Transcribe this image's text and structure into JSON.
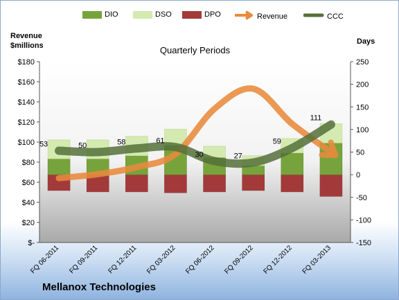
{
  "chart_data": {
    "type": "bar",
    "title": "Quarterly Periods",
    "company": "Mellanox Technologies",
    "y_left_label": [
      "Revenue",
      "$millions"
    ],
    "y_right_label": "Days",
    "categories": [
      "FQ 06-2011",
      "FQ 09-2011",
      "FQ 12-2011",
      "FQ 03-2012",
      "FQ 06-2012",
      "FQ 09-2012",
      "FQ 12-2012",
      "FQ 03-2013"
    ],
    "y_left_ticks": [
      "$-",
      "$20",
      "$40",
      "$60",
      "$80",
      "$100",
      "$120",
      "$140",
      "$160",
      "$180"
    ],
    "y_left_range": [
      0,
      180
    ],
    "y_right_range": [
      -150,
      250
    ],
    "y_right_ticks": [
      "-150",
      "-100",
      "-50",
      "0",
      "50",
      "100",
      "150",
      "200",
      "250"
    ],
    "series": [
      {
        "name": "DIO",
        "axis": "days",
        "color": "#77a33c",
        "values": [
          35,
          35,
          42,
          65,
          38,
          20,
          48,
          70
        ]
      },
      {
        "name": "DSO",
        "axis": "days",
        "color": "#d4eab0",
        "values": [
          42,
          42,
          43,
          36,
          25,
          22,
          32,
          43
        ]
      },
      {
        "name": "DPO",
        "axis": "days",
        "color": "#a33a3a",
        "values": [
          -35,
          -38,
          -38,
          -40,
          -38,
          -35,
          -38,
          -48
        ]
      },
      {
        "name": "Revenue",
        "axis": "revenue",
        "color": "#e88a3c",
        "values": [
          64,
          68,
          75,
          88,
          133,
          153,
          118,
          90
        ]
      },
      {
        "name": "CCC",
        "axis": "days",
        "color": "#55703a",
        "values": [
          53,
          50,
          58,
          61,
          30,
          27,
          59,
          111
        ],
        "labels": [
          "53",
          "50",
          "58",
          "61",
          "30",
          "27",
          "59",
          "111"
        ]
      }
    ],
    "legend_position": "top",
    "grid": false
  }
}
